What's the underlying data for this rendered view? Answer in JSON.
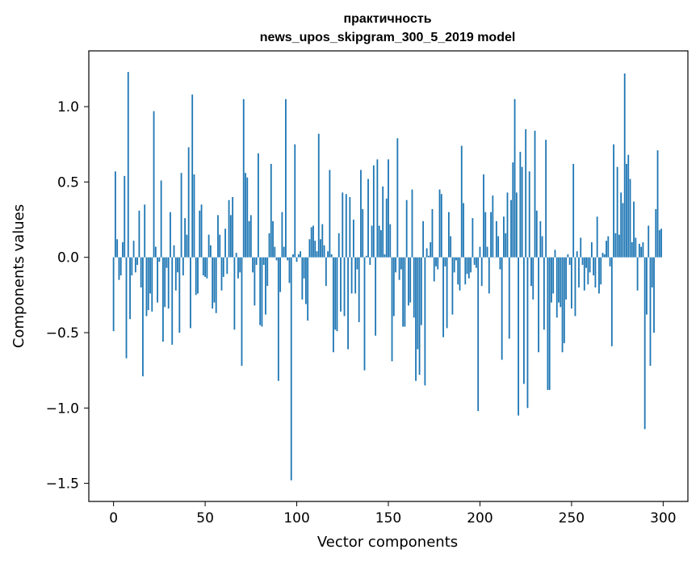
{
  "chart_data": {
    "type": "bar",
    "title": "практичность",
    "subtitle": "news_upos_skipgram_300_5_2019 model",
    "xlabel": "Vector components",
    "ylabel": "Components values",
    "xlim": [
      -13.5,
      313.5
    ],
    "ylim": [
      -1.62,
      1.37
    ],
    "x_ticks": [
      0,
      50,
      100,
      150,
      200,
      250,
      300
    ],
    "x_tick_labels": [
      "0",
      "50",
      "100",
      "150",
      "200",
      "250",
      "300"
    ],
    "y_ticks": [
      -1.5,
      -1.0,
      -0.5,
      0.0,
      0.5,
      1.0
    ],
    "y_tick_labels": [
      "−1.5",
      "−1.0",
      "−0.5",
      "0.0",
      "0.5",
      "1.0"
    ],
    "bar_color": "#1f77b4",
    "grid": false,
    "values": [
      -0.49,
      0.57,
      0.12,
      -0.15,
      -0.12,
      0.1,
      0.54,
      -0.67,
      1.23,
      -0.41,
      -0.12,
      0.11,
      -0.1,
      -0.05,
      0.31,
      -0.2,
      -0.79,
      0.35,
      -0.39,
      -0.35,
      -0.24,
      -0.36,
      0.97,
      0.07,
      -0.3,
      -0.03,
      0.51,
      -0.56,
      -0.33,
      -0.07,
      -0.34,
      0.3,
      -0.58,
      0.08,
      -0.22,
      -0.1,
      -0.5,
      0.56,
      -0.12,
      0.26,
      0.15,
      0.73,
      -0.47,
      1.08,
      0.55,
      -0.25,
      -0.24,
      0.31,
      0.35,
      -0.12,
      -0.13,
      -0.14,
      0.15,
      0.08,
      -0.34,
      -0.3,
      -0.37,
      0.28,
      0.15,
      -0.22,
      -0.13,
      0.19,
      -0.11,
      0.38,
      0.28,
      0.4,
      -0.48,
      0.03,
      -0.14,
      -0.1,
      -0.72,
      1.05,
      0.56,
      0.53,
      0.24,
      0.28,
      -0.1,
      -0.32,
      -0.05,
      0.69,
      -0.45,
      -0.46,
      -0.05,
      -0.38,
      -0.19,
      0.16,
      0.62,
      0.24,
      0.07,
      -0.02,
      -0.82,
      -0.23,
      0.3,
      0.07,
      1.05,
      -0.02,
      -0.17,
      -1.48,
      0.02,
      0.75,
      -0.03,
      0.02,
      0.04,
      -0.28,
      -0.14,
      -0.31,
      -0.42,
      0.12,
      0.2,
      0.21,
      0.11,
      0.04,
      0.82,
      0.12,
      0.22,
      0.08,
      -0.19,
      0.04,
      0.58,
      0.02,
      -0.63,
      -0.48,
      -0.49,
      0.16,
      -0.36,
      0.43,
      -0.39,
      0.42,
      -0.61,
      0.4,
      -0.24,
      0.25,
      -0.24,
      -0.08,
      -0.43,
      0.58,
      0.32,
      -0.75,
      0.01,
      0.52,
      -0.05,
      0.21,
      0.61,
      -0.52,
      0.65,
      0.21,
      0.18,
      0.47,
      0.02,
      0.39,
      0.65,
      0.22,
      -0.69,
      -0.39,
      -0.1,
      0.79,
      -0.15,
      -0.08,
      -0.46,
      -0.46,
      0.38,
      -0.32,
      -0.3,
      0.45,
      -0.4,
      -0.82,
      -0.61,
      -0.78,
      -0.45,
      0.24,
      -0.85,
      0.06,
      0.01,
      0.1,
      0.32,
      -0.16,
      -0.06,
      -0.08,
      0.45,
      0.42,
      -0.53,
      -0.06,
      -0.47,
      0.3,
      0.14,
      -0.38,
      -0.1,
      -0.02,
      -0.18,
      -0.22,
      0.74,
      0.36,
      -0.18,
      -0.11,
      -0.14,
      -0.1,
      0.26,
      -0.05,
      -0.07,
      -1.02,
      0.07,
      -0.19,
      0.55,
      0.3,
      0.07,
      -0.24,
      0.3,
      0.41,
      0.0,
      0.24,
      0.14,
      -0.08,
      -0.68,
      0.27,
      0.16,
      0.43,
      -0.54,
      0.38,
      0.63,
      1.05,
      0.43,
      -1.05,
      0.7,
      0.6,
      -0.84,
      0.85,
      -1.0,
      0.57,
      -0.19,
      -0.28,
      0.84,
      0.31,
      -0.63,
      0.24,
      0.14,
      -0.48,
      0.78,
      -0.88,
      -0.88,
      -0.3,
      -0.24,
      0.05,
      -0.4,
      -0.3,
      -0.33,
      -0.63,
      -0.57,
      -0.28,
      0.02,
      -0.05,
      -0.34,
      0.62,
      -0.39,
      0.04,
      -0.2,
      0.13,
      -0.05,
      -0.22,
      -0.07,
      -0.18,
      -0.1,
      0.1,
      -0.12,
      -0.2,
      0.27,
      -0.24,
      -0.18,
      0.03,
      0.02,
      0.11,
      0.14,
      -0.06,
      -0.59,
      0.75,
      0.16,
      0.6,
      0.15,
      0.43,
      0.36,
      1.22,
      0.62,
      0.68,
      0.52,
      0.1,
      0.37,
      0.13,
      -0.22,
      0.09,
      0.07,
      0.1,
      -1.14,
      -0.38,
      0.21,
      -0.72,
      -0.2,
      -0.5,
      0.32,
      0.71,
      0.18,
      0.19
    ]
  }
}
